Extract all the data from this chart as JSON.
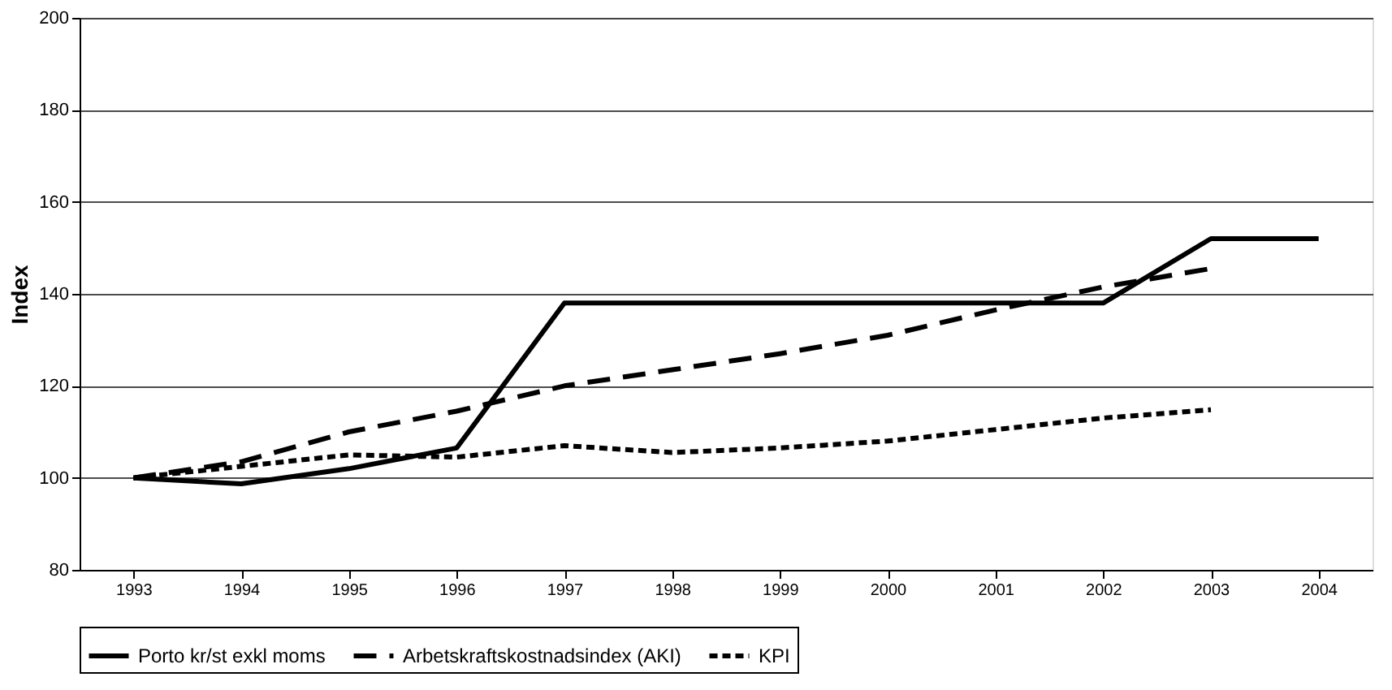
{
  "chart_data": {
    "type": "line",
    "ylabel": "Index",
    "categories": [
      "1993",
      "1994",
      "1995",
      "1996",
      "1997",
      "1998",
      "1999",
      "2000",
      "2001",
      "2002",
      "2003",
      "2004"
    ],
    "series": [
      {
        "name": "Porto kr/st exkl moms",
        "color": "#000000",
        "line_style": "solid",
        "values": [
          100,
          98.7,
          102,
          106.5,
          138,
          138,
          138,
          138,
          138,
          138,
          152,
          152
        ]
      },
      {
        "name": "Arbetskraftskostnadsindex (AKI)",
        "color": "#000000",
        "line_style": "dashed",
        "values": [
          100,
          103.5,
          110,
          114.5,
          120,
          123.5,
          127,
          131,
          136.5,
          141.5,
          145.5,
          null
        ]
      },
      {
        "name": "KPI",
        "color": "#000000",
        "line_style": "dotted",
        "values": [
          100,
          102.5,
          105,
          104.5,
          107,
          105.5,
          106.5,
          108,
          110.5,
          113,
          114.8,
          null
        ]
      }
    ],
    "ylim": [
      80,
      200
    ],
    "yticks": [
      80,
      100,
      120,
      140,
      160,
      180,
      200
    ],
    "grid": "y",
    "legend": "bottom",
    "marker": "none"
  }
}
